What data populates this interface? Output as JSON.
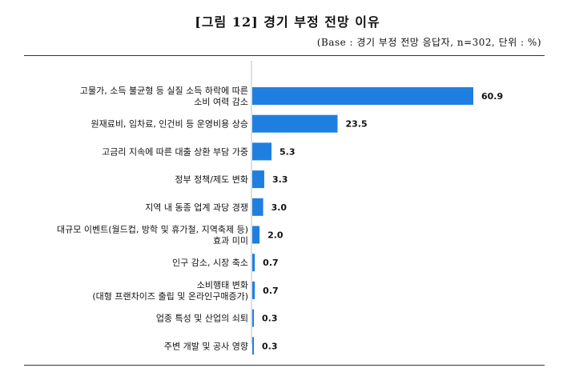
{
  "chart_data": {
    "type": "bar",
    "orientation": "horizontal",
    "title": "[그림 12] 경기 부정 전망 이유",
    "subtitle": "(Base : 경기 부정 전망 응답자, n=302, 단위 : %)",
    "categories": [
      [
        "고물가, 소득 불균형 등 실질 소득 하락에 따른",
        "소비 여력 감소"
      ],
      [
        "원재료비, 임차료, 인건비 등 운영비용 상승"
      ],
      [
        "고금리 지속에 따른 대출 상환 부담 가중"
      ],
      [
        "정부 정책/제도 변화"
      ],
      [
        "지역 내 동종 업계 과당 경쟁"
      ],
      [
        "대규모 이벤트(월드컵, 방학 및 휴가철, 지역축제 등)",
        "효과 미미"
      ],
      [
        "인구 감소, 시장 축소"
      ],
      [
        "소비행태 변화",
        "(대형 프랜차이즈 출립 및 온라인구매증가)"
      ],
      [
        "업종 특성 및 산업의 쇠퇴"
      ],
      [
        "주변 개발 및 공사 영향"
      ]
    ],
    "values": [
      60.9,
      23.5,
      5.3,
      3.3,
      3.0,
      2.0,
      0.7,
      0.7,
      0.3,
      0.3
    ],
    "value_labels": [
      "60.9",
      "23.5",
      "5.3",
      "3.3",
      "3.0",
      "2.0",
      "0.7",
      "0.7",
      "0.3",
      "0.3"
    ],
    "bar_color": "#1f7fe0",
    "xlim": [
      0,
      60.9
    ],
    "grid": false,
    "legend": "none"
  }
}
